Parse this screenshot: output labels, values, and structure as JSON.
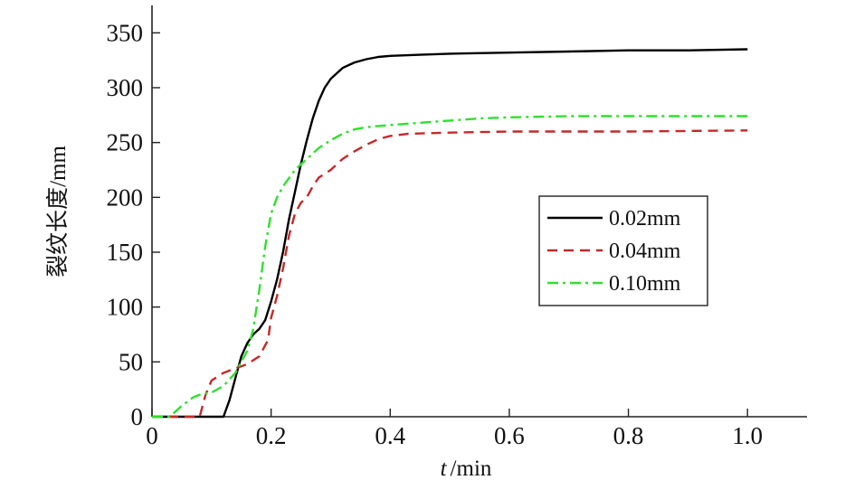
{
  "chart_data": {
    "type": "line",
    "xlabel_var": "t",
    "xlabel_unit": "/min",
    "ylabel": "裂纹长度/mm",
    "xlim": [
      0,
      1.1
    ],
    "ylim": [
      0,
      375
    ],
    "x_ticks": [
      {
        "value": 0,
        "label": "0"
      },
      {
        "value": 0.2,
        "label": "0.2"
      },
      {
        "value": 0.4,
        "label": "0.4"
      },
      {
        "value": 0.6,
        "label": "0.6"
      },
      {
        "value": 0.8,
        "label": "0.8"
      },
      {
        "value": 1.0,
        "label": "1.0"
      }
    ],
    "y_ticks": [
      {
        "value": 0,
        "label": "0"
      },
      {
        "value": 50,
        "label": "50"
      },
      {
        "value": 100,
        "label": "100"
      },
      {
        "value": 150,
        "label": "150"
      },
      {
        "value": 200,
        "label": "200"
      },
      {
        "value": 250,
        "label": "250"
      },
      {
        "value": 300,
        "label": "300"
      },
      {
        "value": 350,
        "label": "350"
      }
    ],
    "grid": false,
    "legend_position": "middle-right",
    "series": [
      {
        "name": "0.02mm",
        "color": "#000000",
        "dash": "solid",
        "points": [
          [
            0,
            0
          ],
          [
            0.12,
            0
          ],
          [
            0.13,
            15
          ],
          [
            0.14,
            35
          ],
          [
            0.15,
            55
          ],
          [
            0.16,
            67
          ],
          [
            0.17,
            75
          ],
          [
            0.18,
            80
          ],
          [
            0.19,
            88
          ],
          [
            0.2,
            105
          ],
          [
            0.21,
            125
          ],
          [
            0.22,
            150
          ],
          [
            0.23,
            180
          ],
          [
            0.24,
            205
          ],
          [
            0.25,
            230
          ],
          [
            0.26,
            252
          ],
          [
            0.27,
            272
          ],
          [
            0.28,
            288
          ],
          [
            0.29,
            300
          ],
          [
            0.3,
            308
          ],
          [
            0.32,
            318
          ],
          [
            0.34,
            323
          ],
          [
            0.36,
            326
          ],
          [
            0.38,
            328
          ],
          [
            0.4,
            329
          ],
          [
            0.45,
            330
          ],
          [
            0.5,
            331
          ],
          [
            0.6,
            332
          ],
          [
            0.7,
            333
          ],
          [
            0.8,
            334
          ],
          [
            0.9,
            334
          ],
          [
            1.0,
            335
          ]
        ]
      },
      {
        "name": "0.04mm",
        "color": "#c62828",
        "dash": "dashed",
        "points": [
          [
            0,
            0
          ],
          [
            0.08,
            0
          ],
          [
            0.09,
            20
          ],
          [
            0.1,
            33
          ],
          [
            0.12,
            40
          ],
          [
            0.14,
            44
          ],
          [
            0.16,
            48
          ],
          [
            0.18,
            55
          ],
          [
            0.195,
            70
          ],
          [
            0.2,
            90
          ],
          [
            0.21,
            110
          ],
          [
            0.22,
            135
          ],
          [
            0.23,
            165
          ],
          [
            0.24,
            185
          ],
          [
            0.25,
            195
          ],
          [
            0.26,
            200
          ],
          [
            0.27,
            210
          ],
          [
            0.28,
            218
          ],
          [
            0.3,
            225
          ],
          [
            0.32,
            235
          ],
          [
            0.34,
            242
          ],
          [
            0.36,
            248
          ],
          [
            0.38,
            253
          ],
          [
            0.4,
            256
          ],
          [
            0.43,
            258
          ],
          [
            0.5,
            259
          ],
          [
            0.6,
            260
          ],
          [
            0.8,
            260
          ],
          [
            1.0,
            261
          ]
        ]
      },
      {
        "name": "0.10mm",
        "color": "#2ee02e",
        "dash": "dashdot",
        "points": [
          [
            0,
            0
          ],
          [
            0.03,
            0
          ],
          [
            0.05,
            10
          ],
          [
            0.07,
            18
          ],
          [
            0.08,
            20
          ],
          [
            0.1,
            22
          ],
          [
            0.12,
            28
          ],
          [
            0.14,
            40
          ],
          [
            0.16,
            60
          ],
          [
            0.17,
            80
          ],
          [
            0.18,
            115
          ],
          [
            0.19,
            155
          ],
          [
            0.2,
            185
          ],
          [
            0.21,
            200
          ],
          [
            0.22,
            210
          ],
          [
            0.24,
            225
          ],
          [
            0.26,
            235
          ],
          [
            0.28,
            245
          ],
          [
            0.3,
            252
          ],
          [
            0.32,
            258
          ],
          [
            0.34,
            262
          ],
          [
            0.36,
            264
          ],
          [
            0.4,
            266
          ],
          [
            0.45,
            268
          ],
          [
            0.5,
            270
          ],
          [
            0.55,
            272
          ],
          [
            0.6,
            273
          ],
          [
            0.7,
            274
          ],
          [
            0.8,
            274
          ],
          [
            1.0,
            274
          ]
        ]
      }
    ]
  }
}
